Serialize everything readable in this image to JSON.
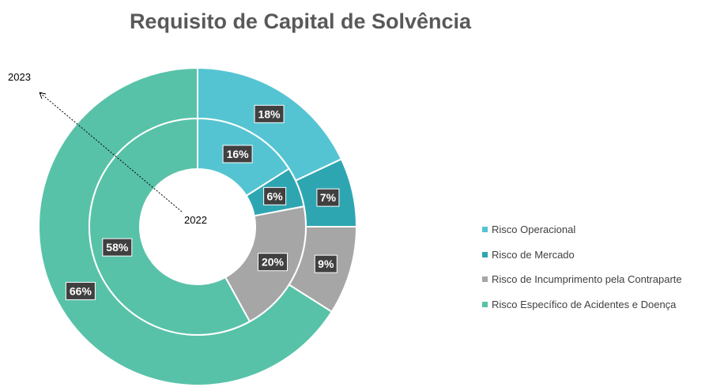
{
  "title": "Requisito de Capital de Solvência",
  "annotations": {
    "outer_ring": "2023",
    "inner_ring": "2022"
  },
  "chart_data": {
    "type": "donut",
    "categories": [
      "Risco Operacional",
      "Risco de Mercado",
      "Risco de Incumprimento pela Contraparte",
      "Risco Específico de Acidentes e Doença"
    ],
    "colors": [
      "#55c4d2",
      "#2ea6b2",
      "#a6a6a6",
      "#58c2a8"
    ],
    "series": [
      {
        "name": "2022",
        "ring": "inner",
        "values": [
          16,
          6,
          20,
          58
        ],
        "labels": [
          "16%",
          "6%",
          "20%",
          "58%"
        ]
      },
      {
        "name": "2023",
        "ring": "outer",
        "values": [
          18,
          7,
          9,
          66
        ],
        "labels": [
          "18%",
          "7%",
          "9%",
          "66%"
        ]
      }
    ],
    "legend_position": "right"
  }
}
